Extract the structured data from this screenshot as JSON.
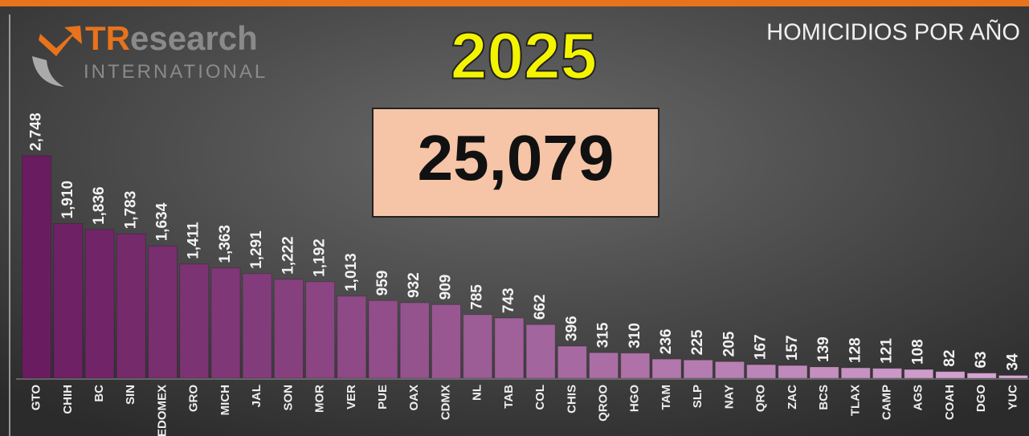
{
  "chart_data": {
    "type": "bar",
    "title": "HOMICIDIOS POR AÑO",
    "year": "2025",
    "total": "25,079",
    "logo": {
      "brand_a": "TR",
      "brand_b": "esearch",
      "sub": "INTERNATIONAL"
    },
    "categories": [
      "GTO",
      "CHIH",
      "BC",
      "SIN",
      "EDOMEX",
      "GRO",
      "MICH",
      "JAL",
      "SON",
      "MOR",
      "VER",
      "PUE",
      "OAX",
      "CDMX",
      "NL",
      "TAB",
      "COL",
      "CHIS",
      "QROO",
      "HGO",
      "TAM",
      "SLP",
      "NAY",
      "QRO",
      "ZAC",
      "BCS",
      "TLAX",
      "CAMP",
      "AGS",
      "COAH",
      "DGO",
      "YUC"
    ],
    "values": [
      2748,
      1910,
      1836,
      1783,
      1634,
      1411,
      1363,
      1291,
      1222,
      1192,
      1013,
      959,
      932,
      909,
      785,
      743,
      662,
      396,
      315,
      310,
      236,
      225,
      205,
      167,
      157,
      139,
      128,
      121,
      108,
      82,
      63,
      34
    ],
    "value_labels": [
      "2,748",
      "1,910",
      "1,836",
      "1,783",
      "1,634",
      "1,411",
      "1,363",
      "1,291",
      "1,222",
      "1,192",
      "1,013",
      "959",
      "932",
      "909",
      "785",
      "743",
      "662",
      "396",
      "315",
      "310",
      "236",
      "225",
      "205",
      "167",
      "157",
      "139",
      "128",
      "121",
      "108",
      "82",
      "63",
      "34"
    ],
    "colors": [
      "#6a1c60",
      "#d9a9d6"
    ],
    "ylim": [
      0,
      2748
    ]
  }
}
